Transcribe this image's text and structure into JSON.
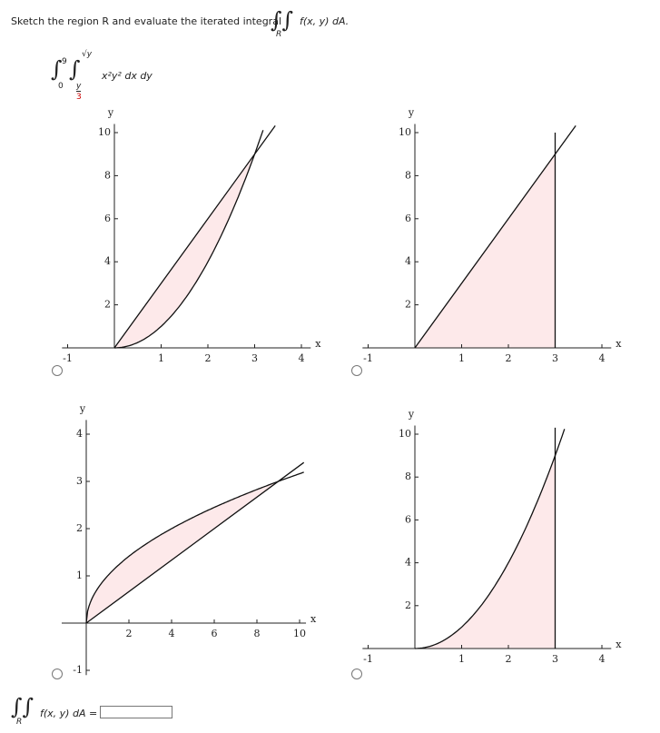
{
  "question": {
    "prompt": "Sketch the region R and evaluate the iterated integral",
    "region": "R",
    "integrand": "f(x, y) dA."
  },
  "iterated_integral": {
    "outer_lower": "0",
    "outer_upper": "9",
    "inner_lower_numerator": "y",
    "inner_lower_denominator": "3",
    "inner_upper": "√y",
    "integrand": "x²y² dx dy"
  },
  "options": [
    {
      "x_label": "x",
      "y_label": "y",
      "xticks": [
        -1,
        1,
        2,
        3,
        4
      ],
      "yticks": [
        2,
        4,
        6,
        8,
        10
      ]
    },
    {
      "x_label": "x",
      "y_label": "y",
      "xticks": [
        -1,
        1,
        2,
        3,
        4
      ],
      "yticks": [
        2,
        4,
        6,
        8,
        10
      ]
    },
    {
      "x_label": "x",
      "y_label": "y",
      "xticks": [
        2,
        4,
        6,
        8,
        10
      ],
      "yticks": [
        -1,
        1,
        2,
        3,
        4
      ]
    },
    {
      "x_label": "x",
      "y_label": "y",
      "xticks": [
        -1,
        1,
        2,
        3,
        4
      ],
      "yticks": [
        2,
        4,
        6,
        8,
        10
      ]
    }
  ],
  "answer": {
    "region": "R",
    "label": "f(x, y) dA ="
  }
}
